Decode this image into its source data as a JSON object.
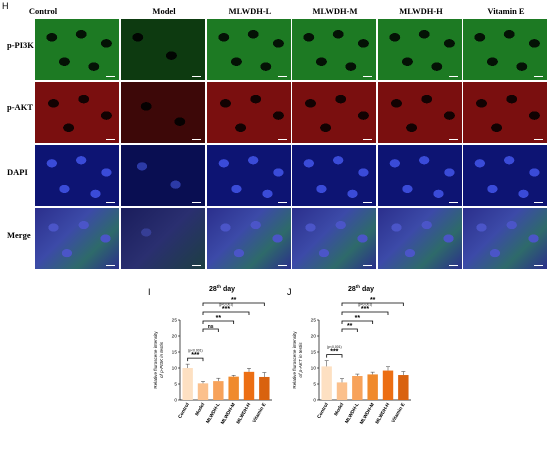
{
  "panel_letters": {
    "h": "H",
    "i": "I",
    "j": "J"
  },
  "columns": [
    "Control",
    "Model",
    "MLWDH-L",
    "MLWDH-M",
    "MLWDH-H",
    "Vitamin E"
  ],
  "rows": [
    "p-PI3K",
    "p-AKT",
    "DAPI",
    "Merge"
  ],
  "colors": {
    "bar1": "#fde0c2",
    "bar2": "#fbc08c",
    "bar3": "#f7a25a",
    "bar4": "#f08a2c",
    "bar5": "#ec6e13",
    "bar6": "#d9620f"
  },
  "chart_data": [
    {
      "type": "bar",
      "title": "28th day",
      "title_base": "28",
      "title_sup": "th",
      "title_rest": " day",
      "ylabel_line1": "Relative fluroscene intensity",
      "ylabel_line2": "of p-PI3K in testis",
      "categories": [
        "Control",
        "Model",
        "MLWDH-L",
        "MLWDH-M",
        "MLWDH-H",
        "Vitamin E"
      ],
      "values": [
        10.0,
        5.2,
        5.9,
        7.3,
        8.8,
        7.2
      ],
      "errors": [
        1.2,
        0.6,
        0.9,
        0.4,
        1.1,
        1.4
      ],
      "ylim": [
        0,
        25
      ],
      "yticks": [
        0,
        5,
        10,
        15,
        20,
        25
      ],
      "annotations": [
        {
          "from": 0,
          "to": 1,
          "label": "***",
          "note": "(p<0.001)"
        },
        {
          "from": 1,
          "to": 2,
          "label": "ns",
          "note": ""
        },
        {
          "from": 1,
          "to": 3,
          "label": "**",
          "note": ""
        },
        {
          "from": 1,
          "to": 4,
          "label": "***",
          "note": "(p<0.001)"
        },
        {
          "from": 1,
          "to": 5,
          "label": "**",
          "note": ""
        }
      ]
    },
    {
      "type": "bar",
      "title": "28th day",
      "title_base": "28",
      "title_sup": "th",
      "title_rest": " day",
      "ylabel_line1": "Relative fluroscene intensity",
      "ylabel_line2": "of p-AKT in testis",
      "categories": [
        "Control",
        "Model",
        "MLWDH-L",
        "MLWDH-M",
        "MLWDH-H",
        "Vitamin E"
      ],
      "values": [
        10.5,
        5.5,
        7.5,
        8.0,
        9.2,
        7.8
      ],
      "errors": [
        1.8,
        1.2,
        0.6,
        0.7,
        1.2,
        1.1
      ],
      "ylim": [
        0,
        25
      ],
      "yticks": [
        0,
        5,
        10,
        15,
        20,
        25
      ],
      "annotations": [
        {
          "from": 0,
          "to": 1,
          "label": "***",
          "note": "(p<0.001)"
        },
        {
          "from": 1,
          "to": 2,
          "label": "**",
          "note": ""
        },
        {
          "from": 1,
          "to": 3,
          "label": "**",
          "note": ""
        },
        {
          "from": 1,
          "to": 4,
          "label": "***",
          "note": "(p<0.001)"
        },
        {
          "from": 1,
          "to": 5,
          "label": "**",
          "note": ""
        }
      ]
    }
  ]
}
